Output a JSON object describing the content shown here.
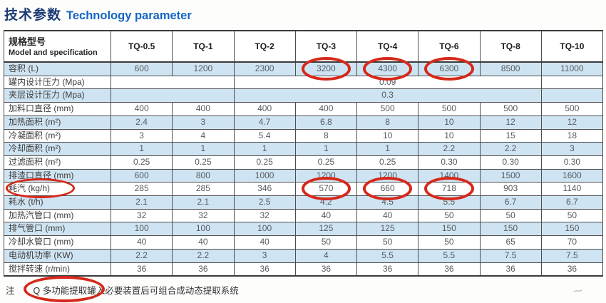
{
  "title": {
    "chinese": "技术参数",
    "english": "Technology parameter"
  },
  "table": {
    "header": {
      "label_zh": "规格型号",
      "label_en": "Model and specification"
    },
    "columns": [
      "TQ-0.5",
      "TQ-1",
      "TQ-2",
      "TQ-3",
      "TQ-4",
      "TQ-6",
      "TQ-8",
      "TQ-10"
    ],
    "merged_row_spans": {
      "pre": 2,
      "value": 5,
      "post": 1
    },
    "rows": [
      {
        "label": "容积 (L)",
        "values": [
          "600",
          "1200",
          "2300",
          "3200",
          "4300",
          "6300",
          "8500",
          "11000"
        ],
        "circled_values": [
          3,
          4,
          5
        ]
      },
      {
        "label": "罐内设计压力 (Mpa)",
        "merged_value": "0.09"
      },
      {
        "label": "夹层设计压力 (Mpa)",
        "merged_value": "0.3"
      },
      {
        "label": "加料口直径 (mm)",
        "values": [
          "400",
          "400",
          "400",
          "400",
          "500",
          "500",
          "500",
          "500"
        ]
      },
      {
        "label": "加热面积 (m²)",
        "values": [
          "2.4",
          "3",
          "4.7",
          "6.8",
          "8",
          "10",
          "12",
          "12"
        ]
      },
      {
        "label": "冷凝面积 (m²)",
        "values": [
          "3",
          "4",
          "5.4",
          "8",
          "10",
          "10",
          "15",
          "18"
        ]
      },
      {
        "label": "冷却面积 (m²)",
        "values": [
          "1",
          "1",
          "1",
          "1",
          "1",
          "2.2",
          "2.2",
          "3"
        ]
      },
      {
        "label": "过滤面积 (m²)",
        "values": [
          "0.25",
          "0.25",
          "0.25",
          "0.25",
          "0.25",
          "0.30",
          "0.30",
          "0.30"
        ]
      },
      {
        "label": "排渣口直径 (mm)",
        "values": [
          "600",
          "800",
          "1000",
          "1200",
          "1200",
          "1400",
          "1500",
          "1600"
        ]
      },
      {
        "label": "耗汽 (kg/h)",
        "values": [
          "285",
          "285",
          "346",
          "570",
          "660",
          "718",
          "903",
          "1140"
        ],
        "circled_values": [
          3,
          4,
          5
        ],
        "label_circled": true
      },
      {
        "label": "耗水 (t/h)",
        "values": [
          "2.1",
          "2.1",
          "2.5",
          "4.2",
          "4.5",
          "5.5",
          "6.7",
          "6.7"
        ]
      },
      {
        "label": "加热汽管口 (mm)",
        "values": [
          "32",
          "32",
          "32",
          "40",
          "40",
          "50",
          "50",
          "50"
        ]
      },
      {
        "label": "排气管口 (mm)",
        "values": [
          "100",
          "100",
          "100",
          "125",
          "125",
          "150",
          "150",
          "150"
        ]
      },
      {
        "label": "冷却水管口 (mm)",
        "values": [
          "40",
          "40",
          "40",
          "50",
          "50",
          "50",
          "65",
          "70"
        ]
      },
      {
        "label": "电动机功率 (KW)",
        "values": [
          "2.2",
          "2.2",
          "3",
          "4",
          "5.5",
          "5.5",
          "7.5",
          "7.5"
        ]
      },
      {
        "label": "搅拌转速 (r/min)",
        "values": [
          "36",
          "36",
          "36",
          "36",
          "36",
          "36",
          "36",
          "36"
        ]
      }
    ]
  },
  "note": {
    "prefix": "注",
    "circled": "Q 多功能提取罐",
    "text": "入必要装置后可组合成动态提取系统"
  },
  "watermark_glyph": "~",
  "colors": {
    "annotation_red": "#d6281a",
    "row_shade_blue": "#cfe4f2",
    "title_chinese_blue": "#1c3a75",
    "title_english_blue": "#1565c4"
  }
}
